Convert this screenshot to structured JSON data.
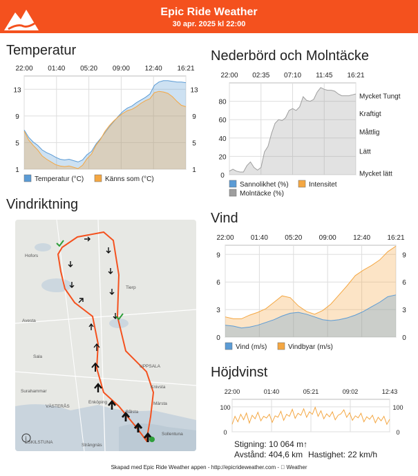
{
  "header": {
    "title": "Epic Ride Weather",
    "subtitle": "30 apr. 2025 kl 22:00",
    "brand_color": "#f4511e"
  },
  "temperature": {
    "section_title": "Temperatur",
    "chart_data": {
      "type": "area",
      "top_time_labels": [
        "22:00",
        "01:40",
        "05:20",
        "09:00",
        "12:40",
        "16:21"
      ],
      "y_ticks": [
        1,
        5,
        9,
        13
      ],
      "ylim": [
        1,
        15
      ],
      "series": [
        {
          "name": "Temperatur (°C)",
          "color": "#5b9bd5",
          "values": [
            6.9,
            5.8,
            5.1,
            4.6,
            3.9,
            3.5,
            3.2,
            2.8,
            2.5,
            2.4,
            2.5,
            2.3,
            2.1,
            2.4,
            3.2,
            3.7,
            4.8,
            5.6,
            6.5,
            7.4,
            8.2,
            9.0,
            9.7,
            10.2,
            10.5,
            11.0,
            11.4,
            11.8,
            12.3,
            13.6,
            14.1,
            14.3,
            14.3,
            14.2,
            14.1,
            14.1,
            14.0
          ]
        },
        {
          "name": "Känns som (°C)",
          "color": "#f4a742",
          "values": [
            6.7,
            5.4,
            4.6,
            3.9,
            3.0,
            2.5,
            2.1,
            1.7,
            1.5,
            1.4,
            1.5,
            1.3,
            1.1,
            1.6,
            2.6,
            3.3,
            4.6,
            5.5,
            6.7,
            7.6,
            8.3,
            8.9,
            9.4,
            9.8,
            10.0,
            10.4,
            10.9,
            11.3,
            11.6,
            12.5,
            12.7,
            12.6,
            12.4,
            11.9,
            11.2,
            10.6,
            10.4
          ]
        }
      ],
      "legend": [
        "Temperatur (°C)",
        "Känns som (°C)"
      ]
    }
  },
  "precipitation": {
    "section_title": "Nederbörd och Molntäcke",
    "chart_data": {
      "type": "area",
      "top_time_labels": [
        "22:00",
        "02:35",
        "07:10",
        "11:45",
        "16:21"
      ],
      "y_ticks": [
        0,
        20,
        40,
        60,
        80
      ],
      "ylim": [
        0,
        100
      ],
      "right_labels": [
        "Mycket Tungt",
        "Kraftigt",
        "Måttlig",
        "Lätt",
        "Mycket lätt"
      ],
      "series": [
        {
          "name": "Molntäcke (%)",
          "color": "#9e9e9e",
          "values": [
            4,
            6,
            4,
            3,
            3,
            10,
            14,
            8,
            5,
            8,
            25,
            31,
            45,
            56,
            60,
            59,
            62,
            70,
            72,
            70,
            74,
            85,
            81,
            80,
            82,
            90,
            95,
            93,
            92,
            92,
            91,
            88,
            86,
            86,
            86,
            87,
            88
          ]
        },
        {
          "name": "Sannolikhet (%)",
          "color": "#5b9bd5",
          "values": []
        },
        {
          "name": "Intensitet",
          "color": "#f4a742",
          "values": []
        }
      ],
      "legend": [
        "Sannolikhet (%)",
        "Intensitet",
        "Molntäcke (%)"
      ]
    }
  },
  "wind_direction": {
    "section_title": "Vindriktning",
    "map_labels": [
      "Hofors",
      "Avesta",
      "Sala",
      "Surahammar",
      "VÄSTERÅS",
      "Enköping",
      "ESKILSTUNA",
      "Strängnäs",
      "Tierp",
      "UPPSALA",
      "Knivsta",
      "Märsta",
      "Bålsta",
      "Sollentuna"
    ],
    "info_icon": "info-icon"
  },
  "wind": {
    "section_title": "Vind",
    "chart_data": {
      "type": "area",
      "top_time_labels": [
        "22:00",
        "01:40",
        "05:20",
        "09:00",
        "12:40",
        "16:21"
      ],
      "y_ticks": [
        0,
        3,
        6,
        9
      ],
      "ylim": [
        0,
        10
      ],
      "series": [
        {
          "name": "Vind (m/s)",
          "color": "#5b9bd5",
          "values": [
            1.3,
            1.2,
            1.0,
            1.1,
            1.3,
            1.6,
            1.9,
            2.3,
            2.6,
            2.7,
            2.5,
            2.2,
            1.9,
            1.8,
            1.9,
            2.1,
            2.4,
            2.8,
            3.3,
            3.8,
            4.4,
            4.6
          ]
        },
        {
          "name": "Vindbyar (m/s)",
          "color": "#f4a742",
          "values": [
            2.2,
            2.0,
            2.0,
            2.4,
            2.7,
            3.1,
            3.8,
            4.5,
            4.3,
            3.4,
            2.8,
            2.5,
            2.9,
            3.6,
            4.6,
            5.6,
            6.7,
            7.3,
            7.8,
            8.4,
            9.3,
            9.9
          ]
        }
      ],
      "legend": [
        "Vind (m/s)",
        "Vindbyar (m/s)"
      ]
    }
  },
  "elevation": {
    "section_title": "Höjdvinst",
    "chart_data": {
      "type": "line",
      "top_time_labels": [
        "22:00",
        "01:40",
        "05:21",
        "09:02",
        "12:43"
      ],
      "y_ticks": [
        0,
        100
      ],
      "ylim": [
        0,
        130
      ],
      "series": [
        {
          "name": "",
          "color": "#f4a742",
          "values": [
            30,
            62,
            40,
            70,
            48,
            75,
            35,
            66,
            52,
            78,
            44,
            62,
            55,
            70,
            38,
            64,
            58,
            82,
            46,
            70,
            62,
            90,
            54,
            74,
            66,
            92,
            58,
            80,
            70,
            98,
            62,
            84,
            52,
            72,
            60,
            80,
            48,
            66,
            72,
            88,
            58,
            76,
            46,
            64,
            56,
            74,
            40,
            60,
            50,
            66,
            36,
            58,
            44,
            62,
            30,
            50
          ]
        }
      ]
    }
  },
  "stats": {
    "climb": "Stigning: 10 064 m↑",
    "distance": "Avstånd: 404,6 km",
    "speed": "Hastighet: 22 km/h"
  },
  "footer": {
    "text": "Skapad med Epic Ride Weather appen - http://epicrideweather.com - \u0000 Weather"
  }
}
